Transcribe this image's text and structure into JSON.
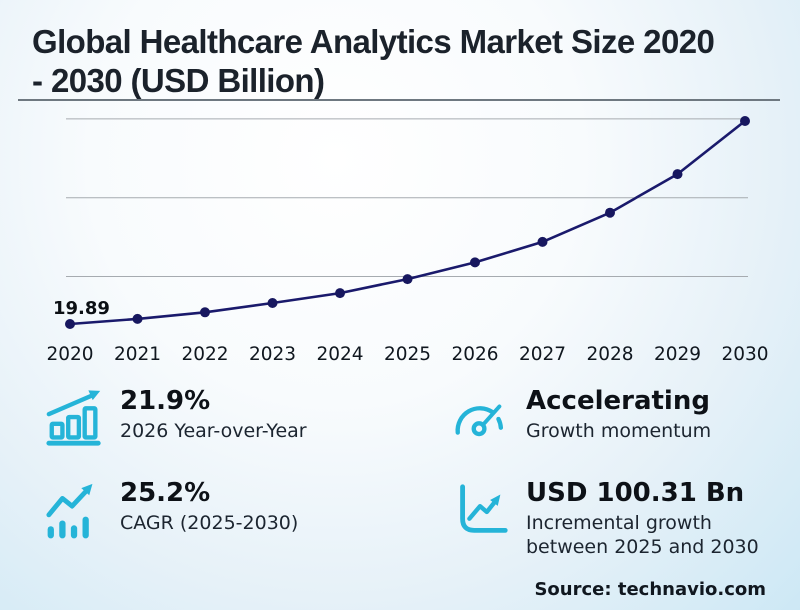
{
  "title": "Global Healthcare Analytics Market Size 2020 - 2030 (USD Billion)",
  "title_lines": [
    "Global Healthcare Analytics Market Size 2020",
    "- 2030 (USD Billion)"
  ],
  "source": "Source: technavio.com",
  "colors": {
    "line": "#1a1a6c",
    "point": "#17175f",
    "grid": "#a6abb0",
    "axis_text": "#10171f",
    "accent": "#25b4d8"
  },
  "chart_data": {
    "type": "line",
    "title": "Global Healthcare Analytics Market Size 2020 - 2030 (USD Billion)",
    "x": [
      2020,
      2021,
      2022,
      2023,
      2024,
      2025,
      2026,
      2027,
      2028,
      2029,
      2030
    ],
    "values": [
      19.89,
      23.1,
      27.3,
      33.2,
      39.5,
      48.35,
      58.94,
      72.0,
      90.5,
      115.0,
      148.66
    ],
    "first_point_label": "19.89",
    "ylim": [
      19.89,
      155
    ],
    "gridline_values": [
      50,
      100,
      150
    ],
    "grid": "horizontal-only",
    "legend": "none",
    "xlabel": "",
    "ylabel": ""
  },
  "stats": [
    {
      "value": "21.9%",
      "label": "2026 Year-over-Year",
      "icon": "bar-chart-rising-icon"
    },
    {
      "value": "25.2%",
      "label": "CAGR (2025-2030)",
      "icon": "trend-arrow-bars-icon"
    },
    {
      "value": "Accelerating",
      "label": "Growth momentum",
      "icon": "speedometer-icon"
    },
    {
      "value": "USD 100.31 Bn",
      "label": "Incremental growth between 2025 and 2030",
      "icon": "axis-growth-arrow-icon"
    }
  ]
}
